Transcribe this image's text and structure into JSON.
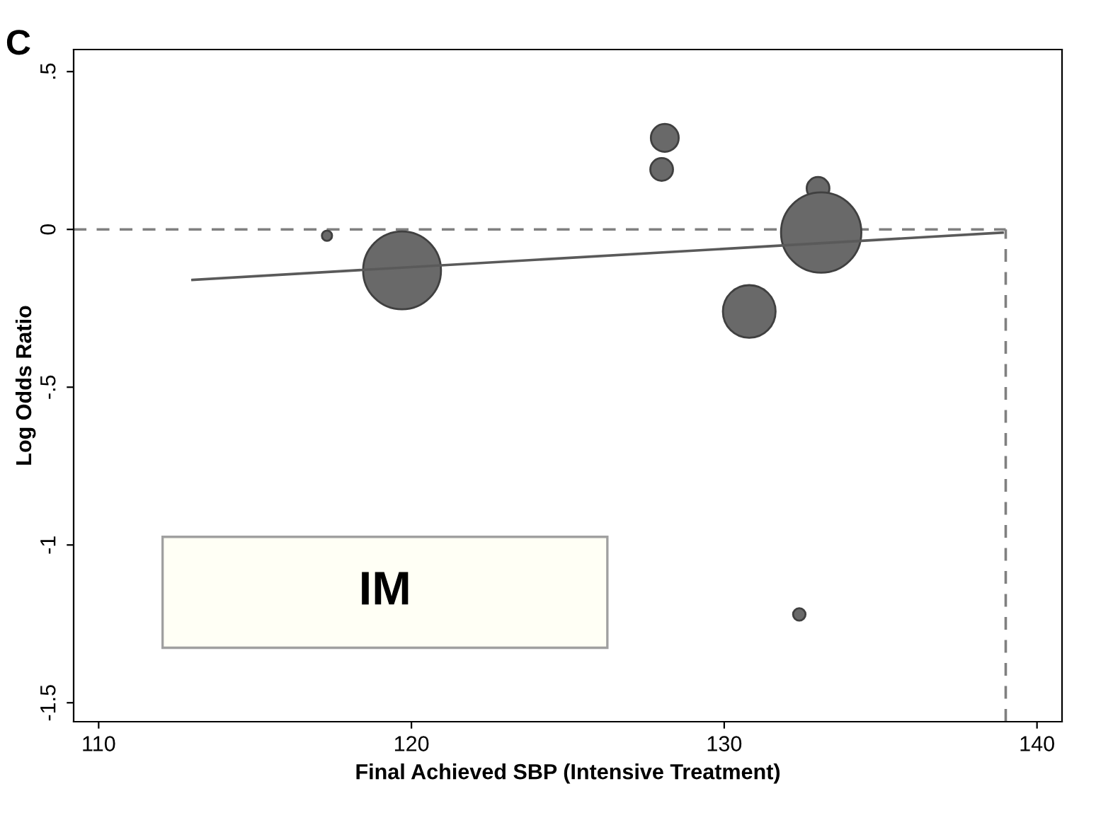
{
  "chart_data": {
    "type": "bubble",
    "title": "C",
    "xlabel": "Final Achieved SBP (Intensive Treatment)",
    "ylabel": "Log Odds Ratio",
    "xlim": [
      109.2,
      140.8
    ],
    "xticks": [
      110,
      120,
      130,
      140
    ],
    "ylim": [
      -1.56,
      0.57
    ],
    "yticks": [
      {
        "value": 0.5,
        "label": ".5"
      },
      0,
      {
        "value": -0.5,
        "label": "-.5"
      },
      -1,
      -1.5
    ],
    "series": [
      {
        "color": "#696969",
        "x": [
          117.3,
          119.7,
          128.1,
          128.0,
          130.8,
          133.0,
          133.1,
          132.4
        ],
        "values": [
          -0.02,
          -0.13,
          0.29,
          0.19,
          -0.26,
          0.13,
          -0.01,
          -1.22
        ],
        "sizes": [
          0.016,
          0.94,
          0.12,
          0.08,
          0.43,
          0.08,
          1,
          0.024
        ]
      },
      {
        "type": "line",
        "color": "#5a5a5a",
        "x": [
          113,
          138.9
        ],
        "values": [
          -0.16,
          -0.01
        ]
      }
    ],
    "ref_lines": [
      {
        "axis": "y",
        "value": 0,
        "color": "#808080",
        "line_style": "dashed"
      },
      {
        "axis": "x",
        "value": 139,
        "color": "#808080",
        "line_style": "dashed"
      }
    ],
    "annotations": [
      "IM"
    ],
    "grid": false,
    "legend": false
  }
}
